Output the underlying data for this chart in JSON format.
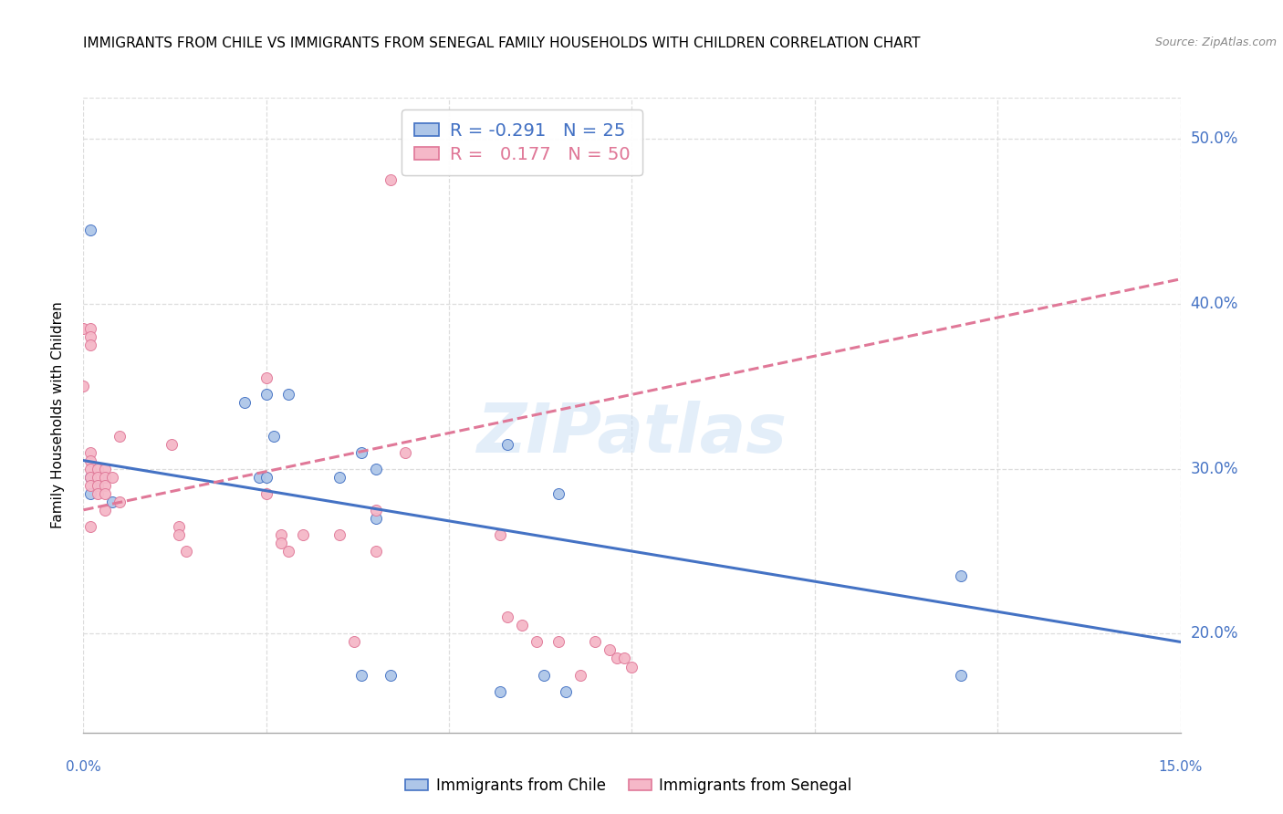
{
  "title": "IMMIGRANTS FROM CHILE VS IMMIGRANTS FROM SENEGAL FAMILY HOUSEHOLDS WITH CHILDREN CORRELATION CHART",
  "source": "Source: ZipAtlas.com",
  "ylabel": "Family Households with Children",
  "xaxis_min": 0.0,
  "xaxis_max": 0.15,
  "yaxis_min": 0.14,
  "yaxis_max": 0.525,
  "chile_color": "#aec6e8",
  "senegal_color": "#f5b8c8",
  "chile_line_color": "#4472c4",
  "senegal_line_color": "#e07898",
  "legend_label_chile": "R = -0.291   N = 25",
  "legend_label_senegal": "R =   0.177   N = 50",
  "legend_label_bottom_chile": "Immigrants from Chile",
  "legend_label_bottom_senegal": "Immigrants from Senegal",
  "chile_trend_x": [
    0.0,
    0.15
  ],
  "chile_trend_y": [
    0.305,
    0.195
  ],
  "senegal_trend_x": [
    0.0,
    0.15
  ],
  "senegal_trend_y": [
    0.275,
    0.415
  ],
  "chile_points_x": [
    0.001,
    0.001,
    0.001,
    0.002,
    0.003,
    0.004,
    0.022,
    0.024,
    0.025,
    0.025,
    0.026,
    0.028,
    0.035,
    0.038,
    0.038,
    0.04,
    0.04,
    0.042,
    0.057,
    0.058,
    0.063,
    0.065,
    0.066,
    0.12,
    0.12
  ],
  "chile_points_y": [
    0.445,
    0.295,
    0.285,
    0.29,
    0.295,
    0.28,
    0.34,
    0.295,
    0.345,
    0.295,
    0.32,
    0.345,
    0.295,
    0.31,
    0.175,
    0.3,
    0.27,
    0.175,
    0.165,
    0.315,
    0.175,
    0.285,
    0.165,
    0.175,
    0.235
  ],
  "senegal_points_x": [
    0.0,
    0.0,
    0.001,
    0.001,
    0.001,
    0.001,
    0.001,
    0.001,
    0.001,
    0.001,
    0.001,
    0.002,
    0.002,
    0.002,
    0.002,
    0.003,
    0.003,
    0.003,
    0.003,
    0.003,
    0.004,
    0.005,
    0.005,
    0.012,
    0.013,
    0.013,
    0.014,
    0.025,
    0.025,
    0.027,
    0.027,
    0.028,
    0.03,
    0.035,
    0.037,
    0.04,
    0.04,
    0.042,
    0.044,
    0.057,
    0.058,
    0.06,
    0.062,
    0.065,
    0.068,
    0.07,
    0.072,
    0.073,
    0.074,
    0.075
  ],
  "senegal_points_y": [
    0.385,
    0.35,
    0.385,
    0.38,
    0.375,
    0.31,
    0.305,
    0.3,
    0.295,
    0.29,
    0.265,
    0.3,
    0.295,
    0.29,
    0.285,
    0.3,
    0.295,
    0.29,
    0.285,
    0.275,
    0.295,
    0.32,
    0.28,
    0.315,
    0.265,
    0.26,
    0.25,
    0.355,
    0.285,
    0.26,
    0.255,
    0.25,
    0.26,
    0.26,
    0.195,
    0.275,
    0.25,
    0.475,
    0.31,
    0.26,
    0.21,
    0.205,
    0.195,
    0.195,
    0.175,
    0.195,
    0.19,
    0.185,
    0.185,
    0.18
  ],
  "watermark": "ZIPatlas",
  "grid_color": "#dddddd",
  "grid_yticks": [
    0.2,
    0.3,
    0.4,
    0.5
  ],
  "grid_xticks": [
    0.0,
    0.025,
    0.05,
    0.075,
    0.1,
    0.125,
    0.15
  ],
  "right_ytick_labels": [
    "20.0%",
    "30.0%",
    "40.0%",
    "50.0%"
  ],
  "right_ytick_values": [
    0.2,
    0.3,
    0.4,
    0.5
  ]
}
